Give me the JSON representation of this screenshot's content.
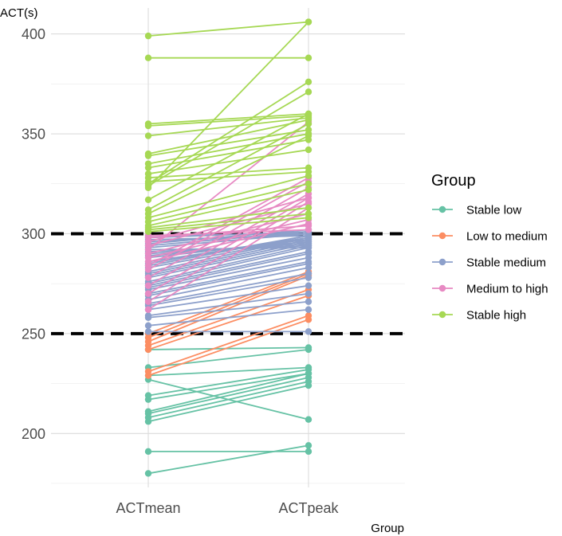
{
  "chart_data": {
    "type": "line",
    "title": "",
    "xlabel": "Group",
    "ylabel": "ACT(s)",
    "categories": [
      "ACTmean",
      "ACTpeak"
    ],
    "ylim": [
      173,
      413
    ],
    "yticks": [
      200,
      250,
      300,
      350,
      400
    ],
    "reference_lines": [
      250,
      300
    ],
    "legend": {
      "title": "Group",
      "position": "right",
      "entries": [
        "Stable low",
        "Low to medium",
        "Stable medium",
        "Medium to high",
        "Stable high"
      ]
    },
    "colors": {
      "Stable low": "#66c2a5",
      "Low to medium": "#fc8d62",
      "Stable medium": "#8da0cb",
      "Medium to high": "#e78ac3",
      "Stable high": "#a6d854",
      "reference_line": "#000000",
      "grid": "#dcdcdc"
    },
    "series": [
      {
        "name": "Stable low",
        "pairs": [
          [
            180,
            194
          ],
          [
            191,
            191
          ],
          [
            206,
            224
          ],
          [
            208,
            226
          ],
          [
            210,
            228
          ],
          [
            211,
            230
          ],
          [
            217,
            230
          ],
          [
            219,
            232
          ],
          [
            227,
            207
          ],
          [
            229,
            233
          ],
          [
            233,
            242
          ],
          [
            242,
            243
          ]
        ]
      },
      {
        "name": "Low to medium",
        "pairs": [
          [
            229,
            257
          ],
          [
            231,
            259
          ],
          [
            242,
            269
          ],
          [
            244,
            272
          ],
          [
            246,
            279
          ],
          [
            248,
            280
          ],
          [
            250,
            281
          ]
        ]
      },
      {
        "name": "Stable medium",
        "pairs": [
          [
            251,
            251
          ],
          [
            254,
            262
          ],
          [
            258,
            266
          ],
          [
            259,
            270
          ],
          [
            262,
            274
          ],
          [
            264,
            278
          ],
          [
            265,
            280
          ],
          [
            267,
            283
          ],
          [
            269,
            285
          ],
          [
            270,
            286
          ],
          [
            272,
            288
          ],
          [
            273,
            290
          ],
          [
            274,
            291
          ],
          [
            275,
            293
          ],
          [
            276,
            294
          ],
          [
            278,
            295
          ],
          [
            279,
            296
          ],
          [
            280,
            297
          ],
          [
            281,
            298
          ],
          [
            283,
            298
          ],
          [
            284,
            299
          ],
          [
            285,
            299
          ],
          [
            286,
            298
          ],
          [
            288,
            297
          ],
          [
            289,
            296
          ],
          [
            290,
            295
          ],
          [
            291,
            294
          ],
          [
            292,
            293
          ],
          [
            293,
            300
          ],
          [
            294,
            301
          ],
          [
            295,
            302
          ],
          [
            296,
            300
          ],
          [
            297,
            299
          ],
          [
            298,
            301
          ],
          [
            299,
            300
          ]
        ]
      },
      {
        "name": "Medium to high",
        "pairs": [
          [
            262,
            313
          ],
          [
            266,
            316
          ],
          [
            270,
            318
          ],
          [
            274,
            320
          ],
          [
            278,
            323
          ],
          [
            282,
            326
          ],
          [
            284,
            328
          ],
          [
            286,
            305
          ],
          [
            288,
            307
          ],
          [
            290,
            310
          ],
          [
            292,
            356
          ],
          [
            294,
            315
          ],
          [
            296,
            318
          ],
          [
            298,
            304
          ],
          [
            299,
            302
          ]
        ]
      },
      {
        "name": "Stable high",
        "pairs": [
          [
            399,
            406
          ],
          [
            388,
            388
          ],
          [
            355,
            360
          ],
          [
            354,
            359
          ],
          [
            349,
            358
          ],
          [
            340,
            357
          ],
          [
            339,
            352
          ],
          [
            335,
            350
          ],
          [
            333,
            347
          ],
          [
            330,
            342
          ],
          [
            328,
            333
          ],
          [
            326,
            331
          ],
          [
            325,
            376
          ],
          [
            324,
            371
          ],
          [
            323,
            406
          ],
          [
            317,
            360
          ],
          [
            312,
            355
          ],
          [
            310,
            349
          ],
          [
            308,
            329
          ],
          [
            306,
            325
          ],
          [
            304,
            322
          ],
          [
            303,
            313
          ],
          [
            302,
            310
          ],
          [
            301,
            308
          ]
        ]
      }
    ]
  }
}
